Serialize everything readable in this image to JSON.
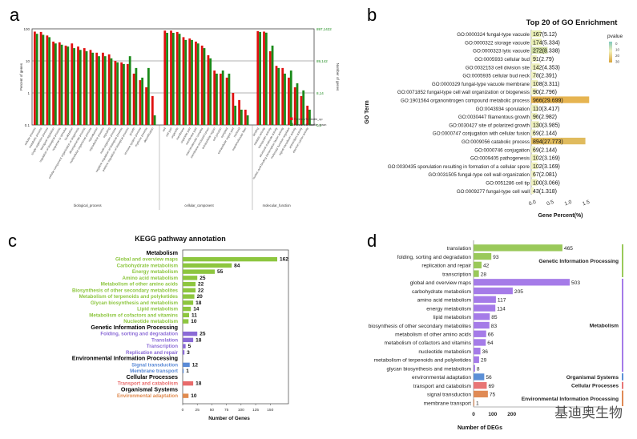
{
  "panel_labels": {
    "a": "a",
    "b": "b",
    "c": "c",
    "d": "d"
  },
  "watermark": "基迪奥生物",
  "chart_data": [
    {
      "panel": "a",
      "type": "bar",
      "ylabel_left": "Percent of genes",
      "ylabel_right": "Number of genes",
      "left_ticks": [
        "100",
        "10",
        "1",
        "0.1"
      ],
      "right_ticks": [
        "897,1422",
        "89,142",
        "8,14",
        "0,1"
      ],
      "legend": [
        "Fenhe-VS-Sterile_up",
        "Fenhe-VS-Sterile_down"
      ],
      "series_colors": [
        "#e01010",
        "#1a8a1a"
      ],
      "groups": [
        {
          "name": "biological_process",
          "categories": [
            "cellular process",
            "metabolic process",
            "single-organism process",
            "biological regulation",
            "regulation of biological process",
            "response to stimulus",
            "localization",
            "cellular component organization or biogenesis",
            "developmental process",
            "multicellular organismal process",
            "reproduction",
            "reproductive process",
            "signaling",
            "multi-organism process",
            "negative regulation of biological process",
            "positive regulation of biological process",
            "growth",
            "immune system process",
            "rhythmic process",
            "detoxification"
          ],
          "up": [
            82,
            80,
            62,
            40,
            38,
            30,
            35,
            28,
            25,
            22,
            18,
            18,
            16,
            10,
            9,
            8,
            4,
            2.5,
            1.5,
            0.8
          ],
          "down": [
            70,
            65,
            55,
            35,
            32,
            28,
            25,
            22,
            20,
            18,
            14,
            14,
            12,
            9,
            8,
            14,
            6,
            3,
            6,
            0.2
          ]
        },
        {
          "name": "cellular_component",
          "categories": [
            "cell",
            "cell part",
            "organelle",
            "membrane",
            "organelle part",
            "membrane part",
            "macromolecular complex",
            "membrane-enclosed lumen",
            "extracellular region",
            "cell junction",
            "symplast",
            "extracellular region part",
            "nucleoid",
            "supramolecular fiber"
          ],
          "up": [
            88,
            88,
            80,
            55,
            50,
            40,
            30,
            15,
            5,
            4,
            3,
            1,
            0.6,
            0.3
          ],
          "down": [
            75,
            75,
            70,
            45,
            45,
            35,
            25,
            12,
            4,
            5,
            4,
            0.4,
            0.3,
            0.2
          ]
        },
        {
          "name": "molecular_function",
          "categories": [
            "binding",
            "catalytic activity",
            "transporter activity",
            "structural molecule activity",
            "nucleic acid binding transcription factor activity",
            "molecular function regulator",
            "signal transducer activity",
            "antioxidant activity",
            "electron carrier activity"
          ],
          "up": [
            85,
            82,
            20,
            7,
            6,
            3,
            1.5,
            0.8,
            0.4
          ],
          "down": [
            80,
            76,
            30,
            6,
            4,
            5,
            2,
            1.2,
            0.3
          ]
        }
      ]
    },
    {
      "panel": "b",
      "type": "bar",
      "title": "Top 20 of GO Enrichment",
      "xlabel": "Gene Percent(%)",
      "ylabel": "GO Term",
      "x_ticks": [
        "0.0",
        "0.5",
        "1.0",
        "1.5"
      ],
      "legend_title": "pvalue",
      "legend_ticks": [
        "0",
        "10",
        "20",
        "30"
      ],
      "items": [
        {
          "term": "GO:0000324 fungal-type vacuole",
          "label": "167(5.12)",
          "value": 5.12,
          "color": "#e8eeb4"
        },
        {
          "term": "GO:0000322 storage vacuole",
          "label": "174(5.334)",
          "value": 5.334,
          "color": "#e8eeb4"
        },
        {
          "term": "GO:0000323 lytic vacuole",
          "label": "272(8.338)",
          "value": 8.338,
          "color": "#cfdca2"
        },
        {
          "term": "GO:0005933 cellular bud",
          "label": "91(2.79)",
          "value": 2.79,
          "color": "#f0f2c0"
        },
        {
          "term": "GO:0032153 cell division site",
          "label": "142(4.353)",
          "value": 4.353,
          "color": "#eef0bc"
        },
        {
          "term": "GO:0005935 cellular bud neck",
          "label": "78(2.391)",
          "value": 2.391,
          "color": "#f0f2c0"
        },
        {
          "term": "GO:0000329 fungal-type vacuole membrane",
          "label": "108(3.311)",
          "value": 3.311,
          "color": "#eef0bc"
        },
        {
          "term": "GO:0071852 fungal-type cell wall organization or biogenesis",
          "label": "90(2.796)",
          "value": 2.796,
          "color": "#f0f2c0"
        },
        {
          "term": "GO:1901564 organonitrogen compound metabolic process",
          "label": "966(29.699)",
          "value": 29.699,
          "color": "#e6b451"
        },
        {
          "term": "GO:0043934 sporulation",
          "label": "110(3.417)",
          "value": 3.417,
          "color": "#eef0bc"
        },
        {
          "term": "GO:0030447 filamentous growth",
          "label": "96(2.982)",
          "value": 2.982,
          "color": "#f0f2c0"
        },
        {
          "term": "GO:0030427 site of polarized growth",
          "label": "130(3.985)",
          "value": 3.985,
          "color": "#eef0bc"
        },
        {
          "term": "GO:0000747 conjugation with cellular fusion",
          "label": "69(2.144)",
          "value": 2.144,
          "color": "#f2f3c4"
        },
        {
          "term": "GO:0009056 catabolic process",
          "label": "894(27.773)",
          "value": 27.773,
          "color": "#e0bb5e"
        },
        {
          "term": "GO:0000746 conjugation",
          "label": "69(2.144)",
          "value": 2.144,
          "color": "#f2f3c4"
        },
        {
          "term": "GO:0009405 pathogenesis",
          "label": "102(3.169)",
          "value": 3.169,
          "color": "#eef0bc"
        },
        {
          "term": "GO:0030435 sporulation resulting in formation of a cellular spore",
          "label": "102(3.169)",
          "value": 3.169,
          "color": "#eef0bc"
        },
        {
          "term": "GO:0031505 fungal-type cell wall organization",
          "label": "67(2.081)",
          "value": 2.081,
          "color": "#f2f3c4"
        },
        {
          "term": "GO:0051286 cell tip",
          "label": "100(3.066)",
          "value": 3.066,
          "color": "#eef0bc"
        },
        {
          "term": "GO:0009277 fungal-type cell wall",
          "label": "43(1.318)",
          "value": 1.318,
          "color": "#f2f3c4"
        }
      ]
    },
    {
      "panel": "c",
      "type": "bar",
      "title": "KEGG pathway annotation",
      "xlabel": "Number of Genes",
      "x_ticks": [
        "0",
        "25",
        "50",
        "75",
        "100",
        "125",
        "150"
      ],
      "xlim": [
        0,
        162
      ],
      "sections": [
        {
          "name": "Metabolism",
          "color": "#8dc63f",
          "items": [
            {
              "label": "Global and overview maps",
              "value": 162
            },
            {
              "label": "Carbohydrate metabolism",
              "value": 84
            },
            {
              "label": "Energy metabolism",
              "value": 55
            },
            {
              "label": "Amino acid metabolism",
              "value": 25
            },
            {
              "label": "Metabolism of other amino acids",
              "value": 22
            },
            {
              "label": "Biosynthesis of other secondary metabolites",
              "value": 22
            },
            {
              "label": "Metabolism of terpenoids and polyketides",
              "value": 20
            },
            {
              "label": "Glycan biosynthesis and metabolism",
              "value": 18
            },
            {
              "label": "Lipid metabolism",
              "value": 14
            },
            {
              "label": "Metabolism of cofactors and vitamins",
              "value": 11
            },
            {
              "label": "Nucleotide metabolism",
              "value": 10
            }
          ]
        },
        {
          "name": "Genetic Information Processing",
          "color": "#8b6bd6",
          "items": [
            {
              "label": "Folding, sorting and degradation",
              "value": 25
            },
            {
              "label": "Translation",
              "value": 18
            },
            {
              "label": "Transcription",
              "value": 5
            },
            {
              "label": "Replication and repair",
              "value": 3
            }
          ]
        },
        {
          "name": "Environmental Information Processing",
          "color": "#5a8ad6",
          "items": [
            {
              "label": "Signal transduction",
              "value": 12
            },
            {
              "label": "Membrane transport",
              "value": 1
            }
          ]
        },
        {
          "name": "Cellular Processes",
          "color": "#e86b6b",
          "items": [
            {
              "label": "Transport and catabolism",
              "value": 18
            }
          ]
        },
        {
          "name": "Organismal Systems",
          "color": "#e08a4e",
          "items": [
            {
              "label": "Environmental adaptation",
              "value": 10
            }
          ]
        }
      ]
    },
    {
      "panel": "d",
      "type": "bar",
      "xlabel": "Number of DEGs",
      "x_ticks": [
        "0",
        "100",
        "200"
      ],
      "items": [
        {
          "label": "translation",
          "value": 465,
          "color": "#9ac95a"
        },
        {
          "label": "folding, sorting and degradation",
          "value": 93,
          "color": "#9ac95a"
        },
        {
          "label": "replication and repair",
          "value": 42,
          "color": "#9ac95a"
        },
        {
          "label": "transcription",
          "value": 28,
          "color": "#9ac95a"
        },
        {
          "label": "global and overview maps",
          "value": 503,
          "color": "#a57be8"
        },
        {
          "label": "carbohydrate metabolism",
          "value": 205,
          "color": "#a57be8"
        },
        {
          "label": "amino acid metabolism",
          "value": 117,
          "color": "#a57be8"
        },
        {
          "label": "energy metabolism",
          "value": 114,
          "color": "#a57be8"
        },
        {
          "label": "lipid metabolism",
          "value": 85,
          "color": "#a57be8"
        },
        {
          "label": "biosynthesis of other secondary metabolites",
          "value": 83,
          "color": "#a57be8"
        },
        {
          "label": "metabolism of other amino acids",
          "value": 66,
          "color": "#a57be8"
        },
        {
          "label": "metabolism of cofactors and vitamins",
          "value": 64,
          "color": "#a57be8"
        },
        {
          "label": "nucleotide metabolism",
          "value": 36,
          "color": "#a57be8"
        },
        {
          "label": "metabolism of terpenoids and polyketides",
          "value": 29,
          "color": "#a57be8"
        },
        {
          "label": "glycan biosynthesis and metabolism",
          "value": 8,
          "color": "#a57be8"
        },
        {
          "label": "environmental adaptation",
          "value": 56,
          "color": "#5b8fd6"
        },
        {
          "label": "transport and catabolism",
          "value": 69,
          "color": "#e87575"
        },
        {
          "label": "signal transduction",
          "value": 75,
          "color": "#e08a55"
        },
        {
          "label": "membrane transport",
          "value": 1,
          "color": "#e08a55"
        }
      ],
      "groups": [
        {
          "name": "Genetic Information Processing",
          "start": 0,
          "end": 3,
          "color": "#9ac95a"
        },
        {
          "name": "Metabolism",
          "start": 4,
          "end": 14,
          "color": "#a57be8"
        },
        {
          "name": "Organismal Systems",
          "start": 15,
          "end": 15,
          "color": "#5b8fd6"
        },
        {
          "name": "Cellular Processes",
          "start": 16,
          "end": 16,
          "color": "#e87575"
        },
        {
          "name": "Environmental Information Processing",
          "start": 17,
          "end": 18,
          "color": "#e08a55"
        }
      ]
    }
  ]
}
